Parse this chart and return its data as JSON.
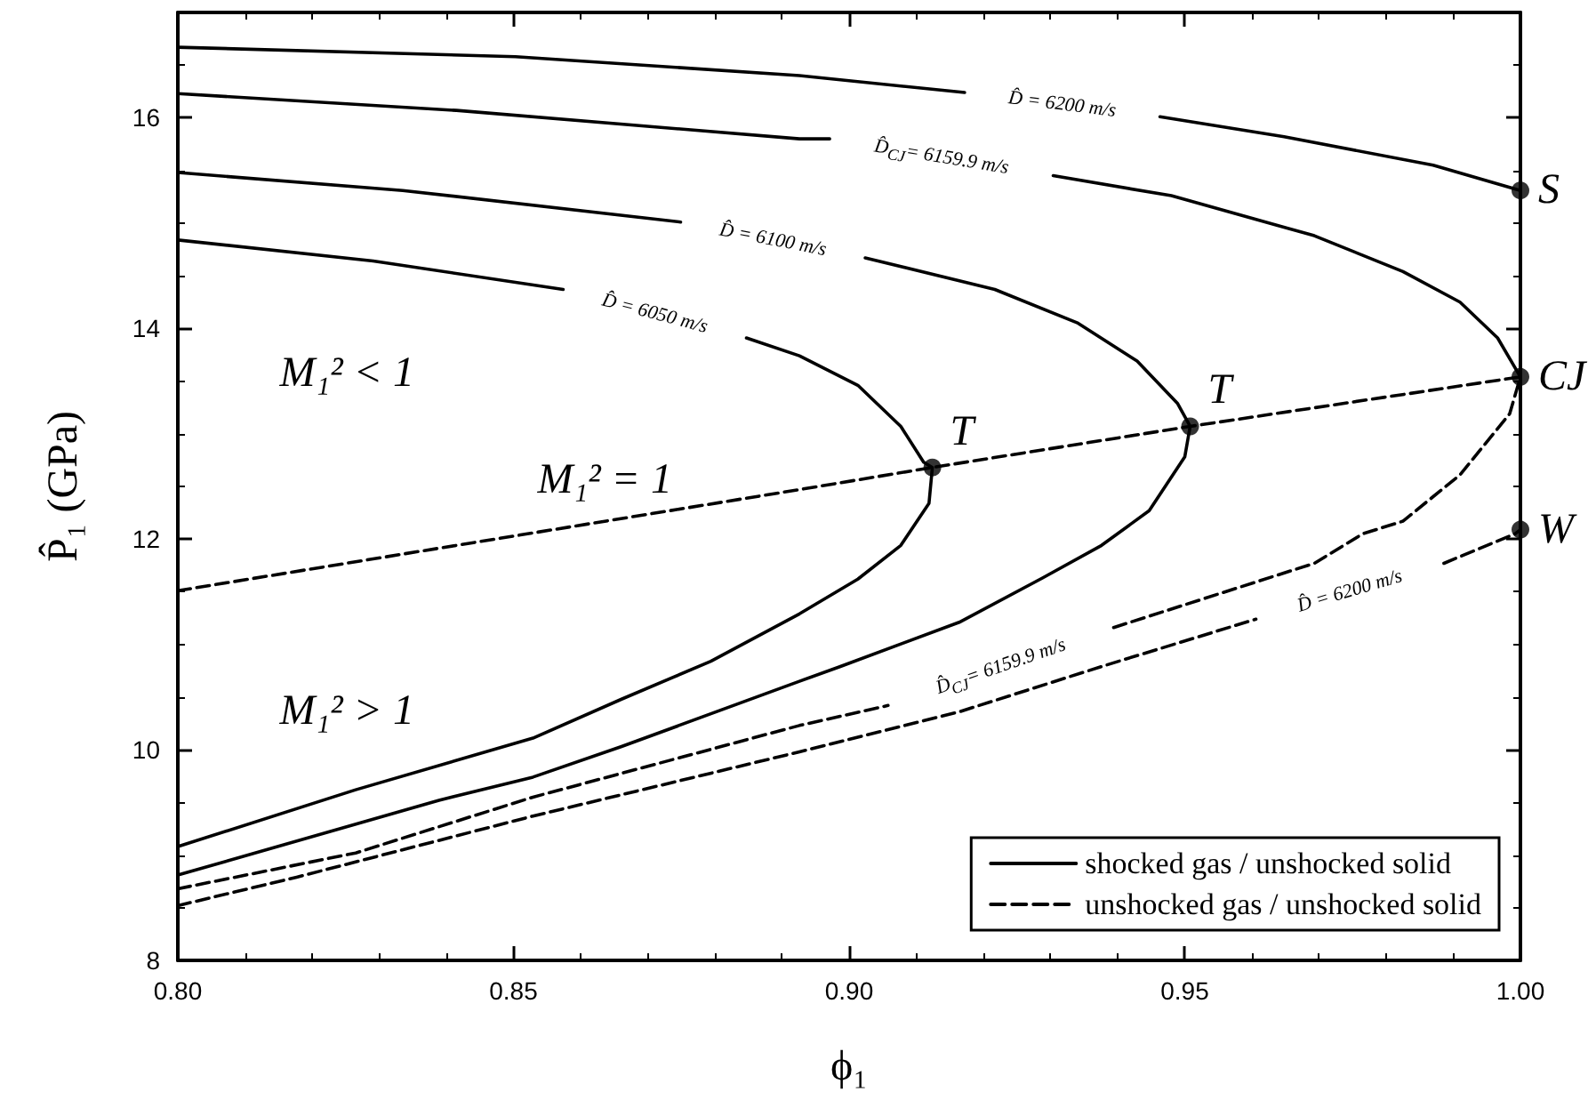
{
  "chart_data": {
    "type": "line",
    "xlabel": "ϕ₁",
    "ylabel": "P̂₁ (GPa)",
    "xlim": [
      0.8,
      1.0
    ],
    "xticks": [
      {
        "value": 0.8,
        "label": "0.80"
      },
      {
        "value": 0.85,
        "label": "0.85"
      },
      {
        "value": 0.9,
        "label": "0.90"
      },
      {
        "value": 0.95,
        "label": "0.95"
      },
      {
        "value": 1.0,
        "label": "1.00"
      }
    ],
    "ylim": [
      8,
      17
    ],
    "yticks": [
      8,
      10,
      12,
      14,
      16
    ],
    "grid": false,
    "legend": "bottom right",
    "marker": "none",
    "series": [
      {
        "name": "shocked gas / unshocked solid",
        "color": "#000000",
        "line_style": "solid",
        "x": [
          0.8,
          0.8503,
          0.8926,
          0.9172,
          0.93,
          0.9463,
          0.9648,
          0.987,
          1.0
        ],
        "values": [
          16.67,
          16.58,
          16.4,
          16.24,
          null,
          16.01,
          15.82,
          15.55,
          15.31
        ]
      },
      {
        "color": "#000000",
        "line_style": "solid",
        "x": [
          0.8,
          0.8415,
          0.8926,
          0.8971,
          0.913,
          0.9304,
          0.948,
          0.9693,
          0.9825,
          0.991,
          0.9966,
          1.0
        ],
        "values": [
          16.23,
          16.07,
          15.8,
          15.8,
          null,
          15.45,
          15.26,
          14.88,
          14.54,
          14.25,
          13.91,
          13.54
        ]
      },
      {
        "color": "#000000",
        "line_style": "solid",
        "x": [
          0.8,
          0.8335,
          0.8749,
          0.889,
          0.9024,
          0.9217,
          0.9341,
          0.9429,
          0.9489,
          0.9508,
          0.95,
          0.9447,
          0.9376,
          0.9288,
          0.9164,
          0.8987,
          0.8926,
          0.8661,
          0.8529,
          0.8389,
          0.8
        ],
        "values": [
          15.48,
          15.31,
          15.01,
          null,
          14.67,
          14.37,
          14.05,
          13.69,
          13.29,
          13.07,
          12.78,
          12.27,
          11.94,
          11.63,
          11.21,
          10.79,
          10.65,
          10.03,
          9.74,
          9.52,
          8.81
        ]
      },
      {
        "color": "#000000",
        "line_style": "solid",
        "x": [
          0.8,
          0.8291,
          0.8574,
          0.871,
          0.8847,
          0.8926,
          0.9013,
          0.9077,
          0.9111,
          0.9124,
          0.9119,
          0.9077,
          0.9013,
          0.8926,
          0.8794,
          0.8661,
          0.8529,
          0.8265,
          0.8
        ],
        "values": [
          14.84,
          14.64,
          14.37,
          null,
          13.91,
          13.74,
          13.46,
          13.07,
          12.73,
          12.68,
          12.34,
          11.94,
          11.62,
          11.29,
          10.84,
          10.48,
          10.11,
          9.62,
          9.08
        ]
      },
      {
        "color": "#000000",
        "line_style": "dashed",
        "x": [
          0.8,
          0.8265,
          0.8529,
          0.8926,
          0.9058,
          0.922,
          0.9394,
          0.9693,
          0.9765,
          0.9825,
          0.991,
          0.9984,
          1.0
        ],
        "values": [
          8.68,
          9.02,
          9.55,
          10.23,
          10.42,
          null,
          11.16,
          11.77,
          12.05,
          12.17,
          12.61,
          13.19,
          13.54
        ]
      },
      {
        "name": "unshocked gas / unshocked solid",
        "color": "#000000",
        "line_style": "dashed",
        "x": [
          0.8,
          0.8177,
          0.8529,
          0.8926,
          0.9164,
          0.9376,
          0.9606,
          0.975,
          0.9886,
          0.9992,
          1.0
        ],
        "values": [
          8.52,
          8.79,
          9.37,
          9.98,
          10.36,
          10.79,
          11.24,
          null,
          11.77,
          12.05,
          12.09
        ]
      },
      {
        "color": "#000000",
        "line_style": "dashed",
        "x": [
          0.8,
          0.8926,
          0.9124,
          0.9508,
          1.0
        ],
        "values": [
          11.51,
          12.47,
          12.68,
          13.07,
          13.54
        ]
      },
      {
        "type": "scatter",
        "color": "#000000",
        "marker": "circle",
        "x": [
          0.9124,
          0.9508,
          1.0,
          1.0,
          1.0
        ],
        "values": [
          12.68,
          13.07,
          15.31,
          13.54,
          12.09
        ]
      }
    ],
    "annotations": [
      "D̂ = 6200 m/s",
      "D̂$_{CJ}$= 6159.9 m/s",
      "D̂ = 6100 m/s",
      "D̂ = 6050 m/s",
      "D̂$_{CJ}$= 6159.9 m/s",
      "D̂ = 6200 m/s",
      {
        "text": "T",
        "x": 0.9124,
        "y": 12.68
      },
      {
        "text": "T",
        "x": 0.9508,
        "y": 13.07
      },
      {
        "text": "S",
        "x": 1.0,
        "y": 15.31
      },
      {
        "text": "CJ",
        "x": 1.0,
        "y": 13.54
      },
      {
        "text": "W",
        "x": 1.0,
        "y": 12.09
      },
      "M₁² < 1",
      "M₁² = 1",
      "M₁² > 1"
    ]
  }
}
